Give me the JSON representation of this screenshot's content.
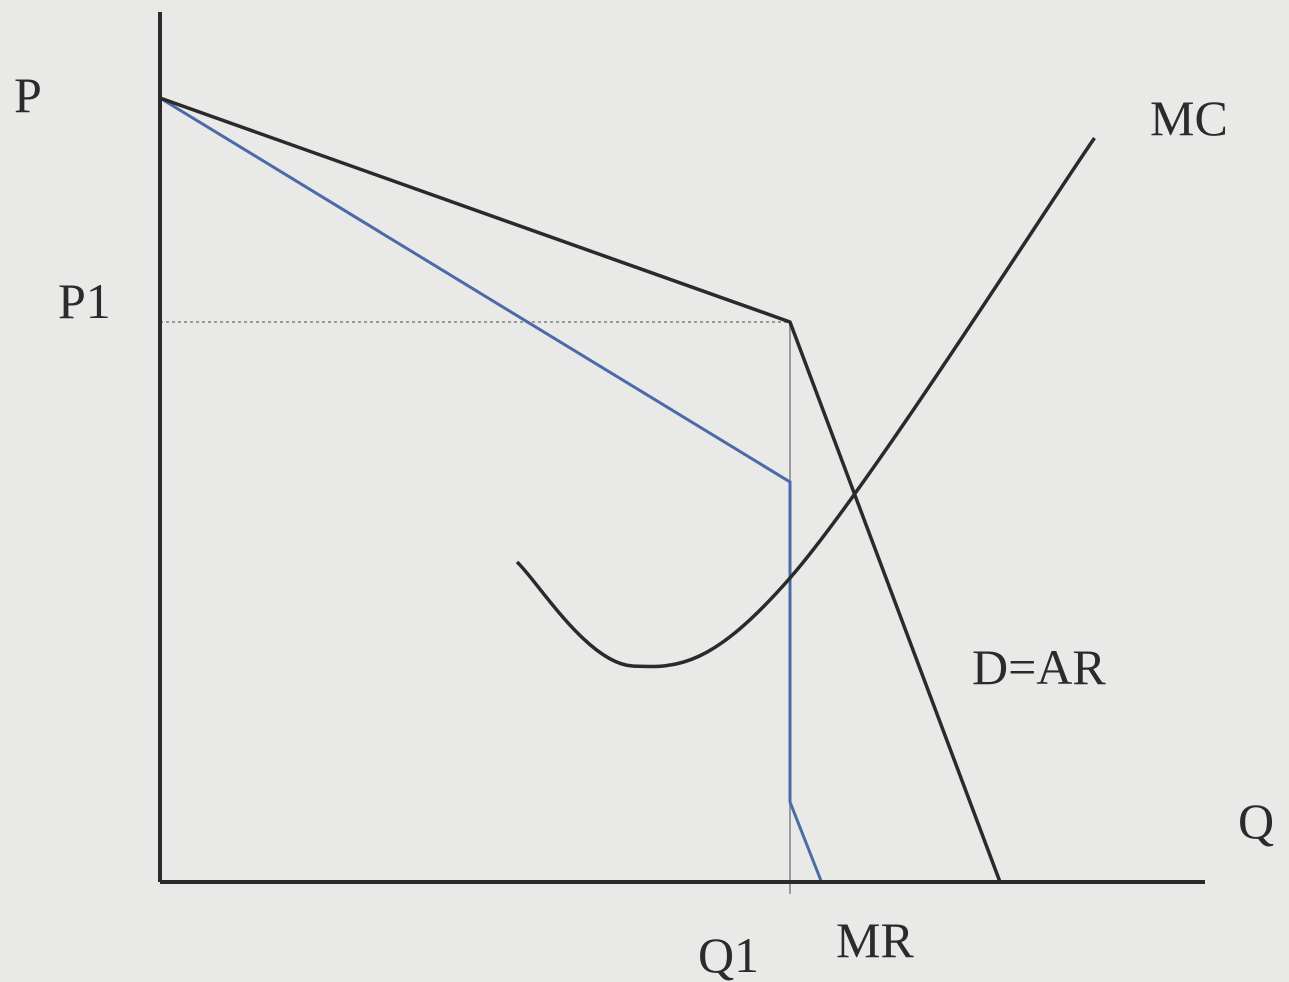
{
  "chart_data": {
    "type": "line",
    "title": "",
    "axes": {
      "y_label": "P",
      "x_label": "Q",
      "x_range": [
        0,
        10
      ],
      "y_range": [
        0,
        10
      ],
      "grid": false
    },
    "reference_levels": {
      "price_label": "P1",
      "price_value": 7,
      "quantity_label": "Q1",
      "quantity_value": 6
    },
    "series": [
      {
        "name": "D=AR",
        "color": "#2a2a2a",
        "points": [
          [
            0,
            9.8
          ],
          [
            6,
            7
          ],
          [
            8,
            0
          ]
        ]
      },
      {
        "name": "MR",
        "color": "#4a6aa8",
        "points": [
          [
            0,
            9.8
          ],
          [
            6,
            5
          ],
          [
            6,
            1
          ],
          [
            6.3,
            0
          ]
        ]
      },
      {
        "name": "MC",
        "color": "#2a2a2a",
        "points": [
          [
            3.4,
            4
          ],
          [
            4.5,
            2.7
          ],
          [
            6,
            3.8
          ],
          [
            8.9,
            9.3
          ]
        ]
      }
    ]
  }
}
